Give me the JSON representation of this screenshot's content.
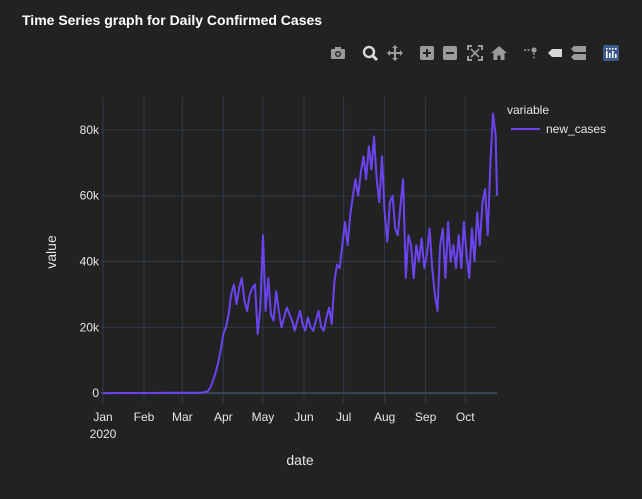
{
  "title": "Time Series graph for Daily Confirmed Cases",
  "modebar": {
    "icons": [
      "camera-icon",
      "zoom-icon",
      "pan-icon",
      "zoom-in-icon",
      "zoom-out-icon",
      "autoscale-icon",
      "reset-axes-icon",
      "spike-lines-icon",
      "hover-closest-icon",
      "hover-compare-icon",
      "plotly-logo-icon"
    ]
  },
  "colors": {
    "background": "#222222",
    "grid": "#2f3a4a",
    "zeroline": "#3a4558",
    "line": "#6b44f0",
    "text": "#e6e6e6"
  },
  "chart_data": {
    "type": "line",
    "xlabel": "date",
    "ylabel": "value",
    "legend_title": "variable",
    "legend_position": "top-right",
    "grid": true,
    "x_tick_labels": [
      "Jan",
      "Feb",
      "Mar",
      "Apr",
      "May",
      "Jun",
      "Jul",
      "Aug",
      "Sep",
      "Oct"
    ],
    "x_tick_sublabel": "2020",
    "x_tick_dates": [
      "2020-01-01",
      "2020-02-01",
      "2020-03-01",
      "2020-04-01",
      "2020-05-01",
      "2020-06-01",
      "2020-07-01",
      "2020-08-01",
      "2020-09-01",
      "2020-10-01"
    ],
    "xlim": [
      "2020-01-01",
      "2020-10-25"
    ],
    "y_tick_labels": [
      "0",
      "20k",
      "40k",
      "60k",
      "80k"
    ],
    "y_tick_values": [
      0,
      20000,
      40000,
      60000,
      80000
    ],
    "ylim": [
      -3000,
      90000
    ],
    "series": [
      {
        "name": "new_cases",
        "points": [
          [
            "2020-01-01",
            0
          ],
          [
            "2020-02-01",
            50
          ],
          [
            "2020-03-01",
            100
          ],
          [
            "2020-03-15",
            100
          ],
          [
            "2020-03-20",
            500
          ],
          [
            "2020-03-22",
            1500
          ],
          [
            "2020-03-24",
            3500
          ],
          [
            "2020-03-26",
            6000
          ],
          [
            "2020-03-28",
            9000
          ],
          [
            "2020-03-30",
            13000
          ],
          [
            "2020-04-01",
            18000
          ],
          [
            "2020-04-03",
            20000
          ],
          [
            "2020-04-05",
            24000
          ],
          [
            "2020-04-07",
            30000
          ],
          [
            "2020-04-09",
            33000
          ],
          [
            "2020-04-11",
            27000
          ],
          [
            "2020-04-13",
            32000
          ],
          [
            "2020-04-15",
            35000
          ],
          [
            "2020-04-17",
            28000
          ],
          [
            "2020-04-19",
            25000
          ],
          [
            "2020-04-21",
            30000
          ],
          [
            "2020-04-23",
            32000
          ],
          [
            "2020-04-25",
            33000
          ],
          [
            "2020-04-27",
            18000
          ],
          [
            "2020-04-29",
            26000
          ],
          [
            "2020-05-01",
            48000
          ],
          [
            "2020-05-03",
            25000
          ],
          [
            "2020-05-05",
            35000
          ],
          [
            "2020-05-07",
            24000
          ],
          [
            "2020-05-09",
            22000
          ],
          [
            "2020-05-11",
            31000
          ],
          [
            "2020-05-13",
            25000
          ],
          [
            "2020-05-15",
            20000
          ],
          [
            "2020-05-17",
            23000
          ],
          [
            "2020-05-19",
            26000
          ],
          [
            "2020-05-21",
            24000
          ],
          [
            "2020-05-23",
            22000
          ],
          [
            "2020-05-25",
            19000
          ],
          [
            "2020-05-27",
            22000
          ],
          [
            "2020-05-29",
            25000
          ],
          [
            "2020-05-31",
            21000
          ],
          [
            "2020-06-02",
            19000
          ],
          [
            "2020-06-04",
            23000
          ],
          [
            "2020-06-06",
            20000
          ],
          [
            "2020-06-08",
            19000
          ],
          [
            "2020-06-10",
            22000
          ],
          [
            "2020-06-12",
            25000
          ],
          [
            "2020-06-14",
            20000
          ],
          [
            "2020-06-16",
            19000
          ],
          [
            "2020-06-18",
            23000
          ],
          [
            "2020-06-20",
            26000
          ],
          [
            "2020-06-22",
            21000
          ],
          [
            "2020-06-24",
            34000
          ],
          [
            "2020-06-26",
            39000
          ],
          [
            "2020-06-28",
            38000
          ],
          [
            "2020-06-30",
            45000
          ],
          [
            "2020-07-02",
            52000
          ],
          [
            "2020-07-04",
            45000
          ],
          [
            "2020-07-06",
            54000
          ],
          [
            "2020-07-08",
            60000
          ],
          [
            "2020-07-10",
            65000
          ],
          [
            "2020-07-12",
            60000
          ],
          [
            "2020-07-14",
            67000
          ],
          [
            "2020-07-16",
            72000
          ],
          [
            "2020-07-18",
            65000
          ],
          [
            "2020-07-20",
            75000
          ],
          [
            "2020-07-22",
            68000
          ],
          [
            "2020-07-24",
            78000
          ],
          [
            "2020-07-26",
            65000
          ],
          [
            "2020-07-28",
            58000
          ],
          [
            "2020-07-30",
            72000
          ],
          [
            "2020-08-01",
            55000
          ],
          [
            "2020-08-03",
            46000
          ],
          [
            "2020-08-05",
            58000
          ],
          [
            "2020-08-07",
            60000
          ],
          [
            "2020-08-09",
            50000
          ],
          [
            "2020-08-11",
            48000
          ],
          [
            "2020-08-13",
            57000
          ],
          [
            "2020-08-15",
            65000
          ],
          [
            "2020-08-17",
            35000
          ],
          [
            "2020-08-19",
            48000
          ],
          [
            "2020-08-21",
            45000
          ],
          [
            "2020-08-23",
            35000
          ],
          [
            "2020-08-25",
            45000
          ],
          [
            "2020-08-27",
            40000
          ],
          [
            "2020-08-29",
            47000
          ],
          [
            "2020-08-31",
            38000
          ],
          [
            "2020-09-02",
            42000
          ],
          [
            "2020-09-04",
            50000
          ],
          [
            "2020-09-06",
            38000
          ],
          [
            "2020-09-08",
            30000
          ],
          [
            "2020-09-10",
            25000
          ],
          [
            "2020-09-12",
            45000
          ],
          [
            "2020-09-14",
            50000
          ],
          [
            "2020-09-16",
            35000
          ],
          [
            "2020-09-18",
            52000
          ],
          [
            "2020-09-20",
            40000
          ],
          [
            "2020-09-22",
            45000
          ],
          [
            "2020-09-24",
            38000
          ],
          [
            "2020-09-26",
            48000
          ],
          [
            "2020-09-28",
            38000
          ],
          [
            "2020-09-30",
            52000
          ],
          [
            "2020-10-02",
            42000
          ],
          [
            "2020-10-04",
            35000
          ],
          [
            "2020-10-06",
            50000
          ],
          [
            "2020-10-08",
            40000
          ],
          [
            "2020-10-10",
            55000
          ],
          [
            "2020-10-12",
            45000
          ],
          [
            "2020-10-14",
            58000
          ],
          [
            "2020-10-16",
            62000
          ],
          [
            "2020-10-18",
            48000
          ],
          [
            "2020-10-20",
            70000
          ],
          [
            "2020-10-22",
            85000
          ],
          [
            "2020-10-24",
            78000
          ],
          [
            "2020-10-25",
            60000
          ]
        ]
      }
    ]
  }
}
